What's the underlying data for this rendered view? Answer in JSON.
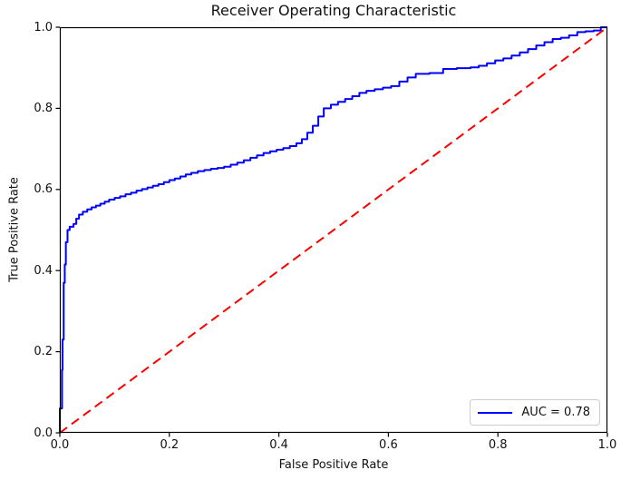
{
  "figure": {
    "title": "Receiver Operating Characteristic",
    "xlabel": "False Positive Rate",
    "ylabel": "True Positive Rate",
    "x_ticks": [
      "0.0",
      "0.2",
      "0.4",
      "0.6",
      "0.8",
      "1.0"
    ],
    "y_ticks": [
      "0.0",
      "0.2",
      "0.4",
      "0.6",
      "0.8",
      "1.0"
    ],
    "legend": {
      "label": "AUC = 0.78"
    },
    "colors": {
      "roc_curve": "#0000ff",
      "diagonal": "#ff0000",
      "spine": "#000000",
      "tick": "#000000",
      "text": "#111111",
      "legend_border": "#cccccc",
      "background": "#ffffff"
    }
  },
  "chart_data": {
    "type": "line",
    "title": "Receiver Operating Characteristic",
    "xlabel": "False Positive Rate",
    "ylabel": "True Positive Rate",
    "xlim": [
      0.0,
      1.0
    ],
    "ylim": [
      0.0,
      1.0
    ],
    "grid": false,
    "legend_position": "lower right",
    "auc": 0.78,
    "series": [
      {
        "name": "ROC curve",
        "legend_label": "AUC = 0.78",
        "data_name": "roc-curve",
        "color": "#0000ff",
        "style": "solid",
        "drawstyle": "steps-post",
        "line_width": 2,
        "points": [
          [
            0.0,
            0.0
          ],
          [
            0.0,
            0.06
          ],
          [
            0.004,
            0.06
          ],
          [
            0.004,
            0.155
          ],
          [
            0.005,
            0.165
          ],
          [
            0.005,
            0.23
          ],
          [
            0.007,
            0.24
          ],
          [
            0.007,
            0.37
          ],
          [
            0.009,
            0.38
          ],
          [
            0.009,
            0.415
          ],
          [
            0.011,
            0.425
          ],
          [
            0.011,
            0.47
          ],
          [
            0.014,
            0.48
          ],
          [
            0.014,
            0.5
          ],
          [
            0.018,
            0.508
          ],
          [
            0.025,
            0.515
          ],
          [
            0.03,
            0.528
          ],
          [
            0.035,
            0.538
          ],
          [
            0.042,
            0.545
          ],
          [
            0.05,
            0.551
          ],
          [
            0.058,
            0.556
          ],
          [
            0.066,
            0.56
          ],
          [
            0.074,
            0.565
          ],
          [
            0.082,
            0.57
          ],
          [
            0.09,
            0.575
          ],
          [
            0.1,
            0.579
          ],
          [
            0.11,
            0.583
          ],
          [
            0.12,
            0.588
          ],
          [
            0.13,
            0.592
          ],
          [
            0.14,
            0.597
          ],
          [
            0.15,
            0.601
          ],
          [
            0.16,
            0.605
          ],
          [
            0.17,
            0.609
          ],
          [
            0.18,
            0.613
          ],
          [
            0.19,
            0.618
          ],
          [
            0.2,
            0.623
          ],
          [
            0.21,
            0.627
          ],
          [
            0.22,
            0.632
          ],
          [
            0.23,
            0.637
          ],
          [
            0.24,
            0.641
          ],
          [
            0.252,
            0.645
          ],
          [
            0.264,
            0.648
          ],
          [
            0.276,
            0.651
          ],
          [
            0.288,
            0.653
          ],
          [
            0.3,
            0.656
          ],
          [
            0.312,
            0.661
          ],
          [
            0.324,
            0.666
          ],
          [
            0.336,
            0.672
          ],
          [
            0.348,
            0.678
          ],
          [
            0.36,
            0.684
          ],
          [
            0.372,
            0.69
          ],
          [
            0.384,
            0.694
          ],
          [
            0.396,
            0.698
          ],
          [
            0.408,
            0.702
          ],
          [
            0.42,
            0.707
          ],
          [
            0.432,
            0.714
          ],
          [
            0.442,
            0.724
          ],
          [
            0.452,
            0.74
          ],
          [
            0.462,
            0.757
          ],
          [
            0.472,
            0.78
          ],
          [
            0.482,
            0.8
          ],
          [
            0.495,
            0.809
          ],
          [
            0.508,
            0.816
          ],
          [
            0.521,
            0.823
          ],
          [
            0.534,
            0.83
          ],
          [
            0.547,
            0.838
          ],
          [
            0.56,
            0.843
          ],
          [
            0.575,
            0.847
          ],
          [
            0.59,
            0.851
          ],
          [
            0.605,
            0.855
          ],
          [
            0.62,
            0.866
          ],
          [
            0.635,
            0.876
          ],
          [
            0.65,
            0.885
          ],
          [
            0.675,
            0.887
          ],
          [
            0.7,
            0.897
          ],
          [
            0.725,
            0.899
          ],
          [
            0.75,
            0.901
          ],
          [
            0.765,
            0.905
          ],
          [
            0.78,
            0.911
          ],
          [
            0.795,
            0.918
          ],
          [
            0.81,
            0.923
          ],
          [
            0.825,
            0.93
          ],
          [
            0.84,
            0.938
          ],
          [
            0.855,
            0.946
          ],
          [
            0.87,
            0.955
          ],
          [
            0.885,
            0.963
          ],
          [
            0.9,
            0.971
          ],
          [
            0.915,
            0.974
          ],
          [
            0.93,
            0.98
          ],
          [
            0.945,
            0.988
          ],
          [
            0.96,
            0.99
          ],
          [
            0.975,
            0.992
          ],
          [
            0.988,
            1.0
          ],
          [
            1.0,
            1.0
          ]
        ]
      },
      {
        "name": "Chance diagonal",
        "data_name": "chance-diagonal-line",
        "color": "#ff0000",
        "style": "dashed",
        "drawstyle": "default",
        "line_width": 2,
        "points": [
          [
            0.0,
            0.0
          ],
          [
            1.0,
            1.0
          ]
        ]
      }
    ]
  }
}
